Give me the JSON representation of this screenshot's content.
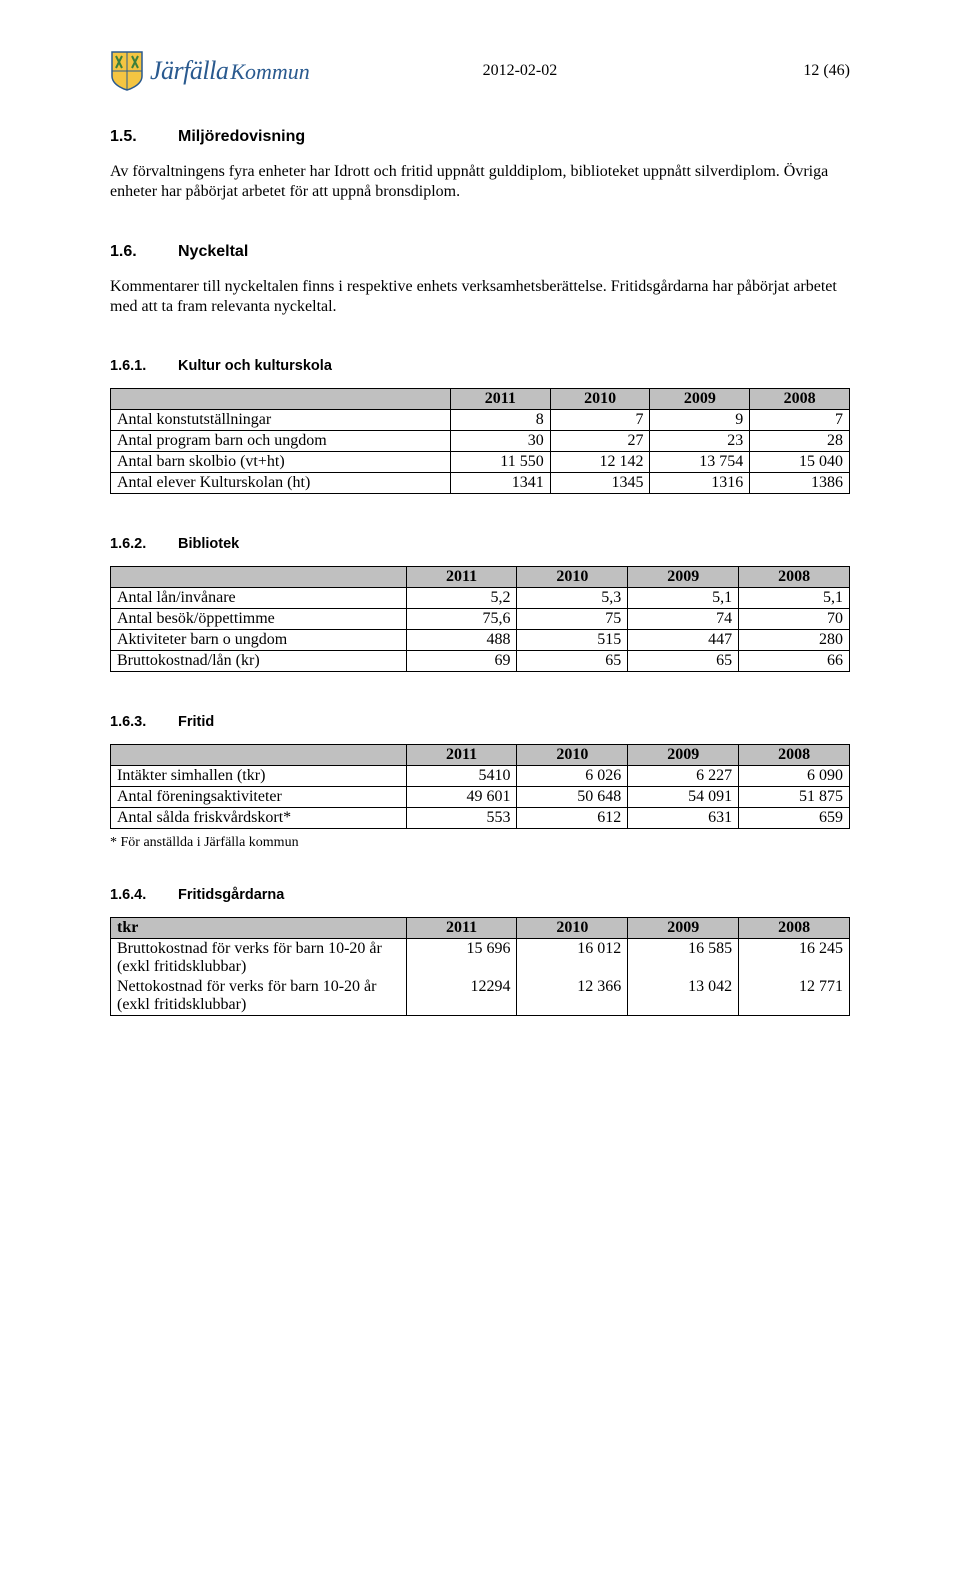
{
  "header": {
    "brand_part1": "Järfälla",
    "brand_part2": "Kommun",
    "date": "2012-02-02",
    "page_no": "12 (46)"
  },
  "sections": {
    "s15": {
      "number": "1.5.",
      "title": "Miljöredovisning",
      "paragraphs": [
        "Av förvaltningens fyra enheter har Idrott och fritid uppnått gulddiplom, biblioteket uppnått silverdiplom. Övriga enheter har påbörjat arbetet för att uppnå bronsdiplom."
      ]
    },
    "s16": {
      "number": "1.6.",
      "title": "Nyckeltal",
      "paragraphs": [
        "Kommentarer till nyckeltalen finns i respektive enhets verksamhetsberättelse. Fritidsgårdarna har påbörjat arbetet med att ta fram relevanta nyckeltal."
      ]
    },
    "s161": {
      "number": "1.6.1.",
      "title": "Kultur och kulturskola",
      "table": {
        "header_bg": "#c0c0c0",
        "col_widths": [
          "46%",
          "13.5%",
          "13.5%",
          "13.5%",
          "13.5%"
        ],
        "align": "right",
        "columns": [
          "",
          "2011",
          "2010",
          "2009",
          "2008"
        ],
        "rows": [
          [
            "Antal konstutställningar",
            "8",
            "7",
            "9",
            "7"
          ],
          [
            "Antal program barn och ungdom",
            "30",
            "27",
            "23",
            "28"
          ],
          [
            "Antal barn skolbio (vt+ht)",
            "11 550",
            "12 142",
            "13 754",
            "15 040"
          ],
          [
            "Antal elever Kulturskolan (ht)",
            "1341",
            "1345",
            "1316",
            "1386"
          ]
        ]
      }
    },
    "s162": {
      "number": "1.6.2.",
      "title": "Bibliotek",
      "table": {
        "header_bg": "#c0c0c0",
        "col_widths": [
          "40%",
          "15%",
          "15%",
          "15%",
          "15%"
        ],
        "align": "right",
        "columns": [
          "",
          "2011",
          "2010",
          "2009",
          "2008"
        ],
        "rows": [
          [
            "Antal lån/invånare",
            "5,2",
            "5,3",
            "5,1",
            "5,1"
          ],
          [
            "Antal besök/öppettimme",
            "75,6",
            "75",
            "74",
            "70"
          ],
          [
            "Aktiviteter barn o ungdom",
            "488",
            "515",
            "447",
            "280"
          ],
          [
            "Bruttokostnad/lån (kr)",
            "69",
            "65",
            "65",
            "66"
          ]
        ]
      }
    },
    "s163": {
      "number": "1.6.3.",
      "title": "Fritid",
      "table": {
        "header_bg": "#c0c0c0",
        "col_widths": [
          "40%",
          "15%",
          "15%",
          "15%",
          "15%"
        ],
        "align": "right",
        "columns": [
          "",
          "2011",
          "2010",
          "2009",
          "2008"
        ],
        "rows": [
          [
            "Intäkter simhallen (tkr)",
            "5410",
            "6 026",
            "6 227",
            "6 090"
          ],
          [
            "Antal föreningsaktiviteter",
            "49 601",
            "50 648",
            "54 091",
            "51 875"
          ],
          [
            "Antal sålda friskvårdskort*",
            "553",
            "612",
            "631",
            "659"
          ]
        ]
      },
      "footnote": "* För anställda i Järfälla kommun"
    },
    "s164": {
      "number": "1.6.4.",
      "title": "Fritidsgårdarna",
      "table": {
        "header_bg": "#c0c0c0",
        "col_widths": [
          "40%",
          "15%",
          "15%",
          "15%",
          "15%"
        ],
        "align": "right",
        "label_header": "tkr",
        "columns": [
          "tkr",
          "2011",
          "2010",
          "2009",
          "2008"
        ],
        "rows": [
          [
            "Bruttokostnad för verks för barn 10-20 år (exkl fritidsklubbar)",
            "15 696",
            "16 012",
            "16 585",
            "16 245"
          ],
          [
            "Nettokostnad för verks för barn 10-20 år (exkl fritidsklubbar)",
            "12294",
            "12 366",
            "13 042",
            "12 771"
          ]
        ]
      }
    }
  }
}
